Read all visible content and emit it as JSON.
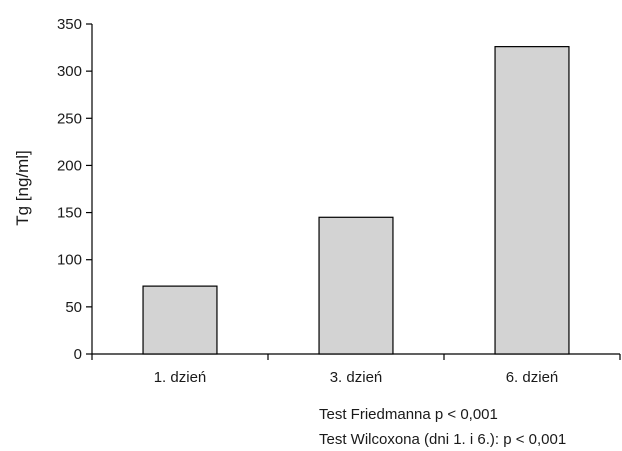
{
  "chart_data": {
    "type": "bar",
    "title": "",
    "xlabel": "",
    "ylabel": "Tg [ng/ml]",
    "categories": [
      "1. dzień",
      "3. dzień",
      "6. dzień"
    ],
    "values": [
      72,
      145,
      326
    ],
    "ylim": [
      0,
      350
    ],
    "yticks": [
      0,
      50,
      100,
      150,
      200,
      250,
      300,
      350
    ],
    "grid": false,
    "legend": "none",
    "bar_fill": "#d3d3d3",
    "bar_stroke": "#000000",
    "annotations": [
      "Test Friedmanna p < 0,001",
      "Test Wilcoxona (dni 1. i 6.): p < 0,001"
    ]
  }
}
